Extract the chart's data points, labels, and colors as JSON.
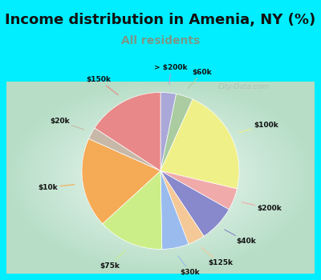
{
  "title": "Income distribution in Amenia, NY (%)",
  "subtitle": "All residents",
  "labels": [
    "> $200k",
    "$60k",
    "$100k",
    "$200k",
    "$40k",
    "$125k",
    "$30k",
    "$75k",
    "$10k",
    "$20k",
    "$150k"
  ],
  "values": [
    3.2,
    3.5,
    22.0,
    4.5,
    7.5,
    3.5,
    5.5,
    13.5,
    18.5,
    2.5,
    15.8
  ],
  "colors": [
    "#aaa8d8",
    "#aacca0",
    "#f0f088",
    "#f0aaaa",
    "#8888cc",
    "#f5c898",
    "#99bbee",
    "#ccee88",
    "#f5aa55",
    "#c8b8a8",
    "#e88888"
  ],
  "bg_color": "#00eeff",
  "panel_colors": [
    "#b8dfc8",
    "#e8f5ee"
  ],
  "title_fontsize": 13,
  "subtitle_fontsize": 10,
  "subtitle_color": "#779988",
  "watermark": "City-Data.com",
  "startangle": 90
}
